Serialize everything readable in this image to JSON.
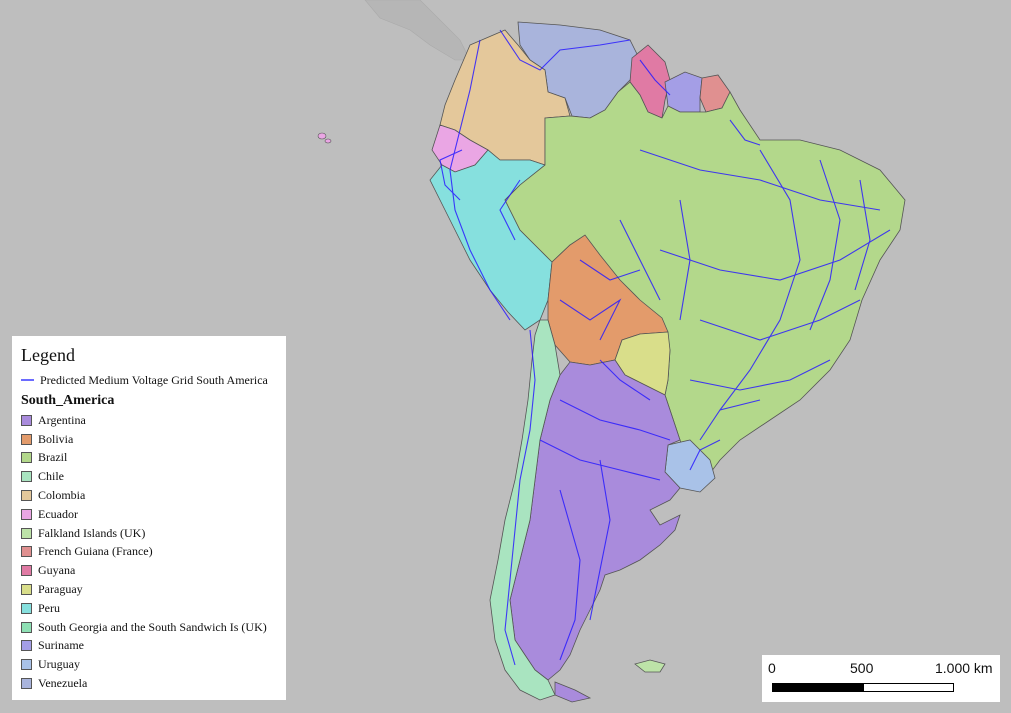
{
  "legend": {
    "title": "Legend",
    "grid_layer": "Predicted Medium Voltage Grid South America",
    "group_title": "South_America",
    "items": [
      {
        "label": "Argentina",
        "color": "#a98bdc"
      },
      {
        "label": "Bolivia",
        "color": "#e39b6b"
      },
      {
        "label": "Brazil",
        "color": "#b3d88b"
      },
      {
        "label": "Chile",
        "color": "#a9e4c0"
      },
      {
        "label": "Colombia",
        "color": "#e4c89b"
      },
      {
        "label": "Ecuador",
        "color": "#eaa6e4"
      },
      {
        "label": "Falkland Islands (UK)",
        "color": "#bde3a8"
      },
      {
        "label": "French Guiana (France)",
        "color": "#e09090"
      },
      {
        "label": "Guyana",
        "color": "#e07aa4"
      },
      {
        "label": "Paraguay",
        "color": "#d9de8a"
      },
      {
        "label": "Peru",
        "color": "#86e0de"
      },
      {
        "label": "South Georgia and the South Sandwich Is (UK)",
        "color": "#8ee0b4"
      },
      {
        "label": "Suriname",
        "color": "#a49ee6"
      },
      {
        "label": "Uruguay",
        "color": "#a9c2e8"
      },
      {
        "label": "Venezuela",
        "color": "#a9b4dc"
      }
    ]
  },
  "scalebar": {
    "label_0": "0",
    "label_mid": "500",
    "label_end": "1.000 km"
  },
  "colors": {
    "background": "#bebebe",
    "grid_line": "#2a1cff"
  }
}
